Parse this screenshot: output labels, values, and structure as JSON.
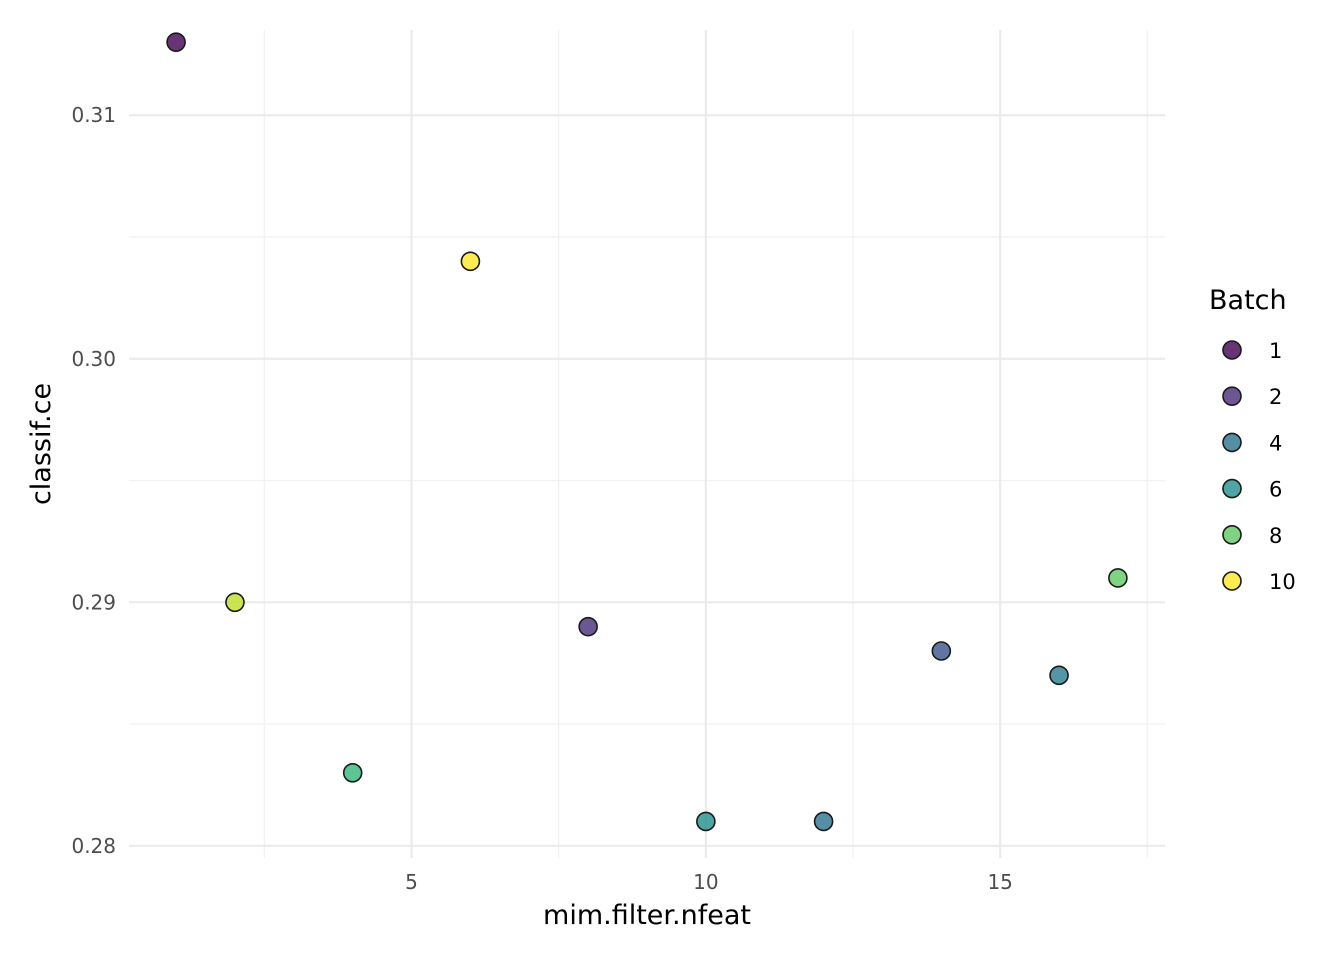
{
  "chart_data": {
    "type": "scatter",
    "title": "",
    "xlabel": "mim.filter.nfeat",
    "ylabel": "classif.ce",
    "xlim": [
      0.2,
      17.8
    ],
    "ylim": [
      0.2795,
      0.3135
    ],
    "x_ticks": [
      5,
      10,
      15
    ],
    "x_tick_labels": [
      "5",
      "10",
      "15"
    ],
    "x_minor_ticks": [
      2.5,
      7.5,
      12.5,
      17.5
    ],
    "y_ticks": [
      0.28,
      0.29,
      0.3,
      0.31
    ],
    "y_tick_labels": [
      "0.28",
      "0.29",
      "0.30",
      "0.31"
    ],
    "y_minor_ticks": [
      0.285,
      0.295,
      0.305
    ],
    "grid": true,
    "legend": {
      "title": "Batch",
      "placement": "right",
      "entries": [
        {
          "label": "1",
          "color": "#440154"
        },
        {
          "label": "2",
          "color": "#472d7b"
        },
        {
          "label": "4",
          "color": "#2c728e"
        },
        {
          "label": "6",
          "color": "#21908c"
        },
        {
          "label": "8",
          "color": "#5ec962"
        },
        {
          "label": "10",
          "color": "#fde725"
        }
      ]
    },
    "points": [
      {
        "x": 1,
        "y": 0.313,
        "batch": 1,
        "color": "#440154"
      },
      {
        "x": 2,
        "y": 0.29,
        "batch": 9,
        "color": "#bddf26"
      },
      {
        "x": 4,
        "y": 0.283,
        "batch": 7,
        "color": "#35b779"
      },
      {
        "x": 6,
        "y": 0.304,
        "batch": 10,
        "color": "#fde725"
      },
      {
        "x": 8,
        "y": 0.289,
        "batch": 2,
        "color": "#472d7b"
      },
      {
        "x": 10,
        "y": 0.281,
        "batch": 6,
        "color": "#21908c"
      },
      {
        "x": 12,
        "y": 0.281,
        "batch": 4,
        "color": "#2c728e"
      },
      {
        "x": 14,
        "y": 0.288,
        "batch": 3,
        "color": "#3b528b"
      },
      {
        "x": 16,
        "y": 0.287,
        "batch": 5,
        "color": "#287c8e"
      },
      {
        "x": 17,
        "y": 0.291,
        "batch": 8,
        "color": "#5ec962"
      }
    ]
  }
}
